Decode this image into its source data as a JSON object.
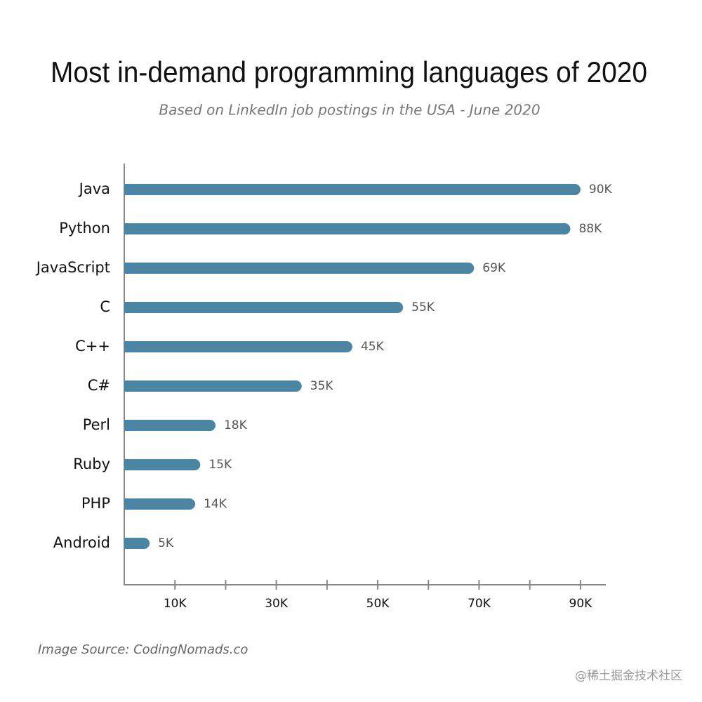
{
  "chart_data": {
    "type": "bar",
    "orientation": "horizontal",
    "title": "Most in-demand programming languages of 2020",
    "subtitle": "Based on LinkedIn job postings in the USA - June 2020",
    "categories": [
      "Java",
      "Python",
      "JavaScript",
      "C",
      "C++",
      "C#",
      "Perl",
      "Ruby",
      "PHP",
      "Android"
    ],
    "values": [
      90,
      88,
      69,
      55,
      45,
      35,
      18,
      15,
      14,
      5
    ],
    "value_labels": [
      "90K",
      "88K",
      "69K",
      "55K",
      "45K",
      "35K",
      "18K",
      "15K",
      "14K",
      "5K"
    ],
    "color": "#4a86a3",
    "xlim": [
      0,
      95
    ],
    "xticks": [
      {
        "value": 10,
        "label": "10K"
      },
      {
        "value": 30,
        "label": "30K"
      },
      {
        "value": 50,
        "label": "50K"
      },
      {
        "value": 70,
        "label": "70K"
      },
      {
        "value": 90,
        "label": "90K"
      }
    ],
    "minor_xticks": [
      20,
      40,
      60,
      80
    ],
    "source": "Image Source: CodingNomads.co"
  },
  "watermark": "@稀土掘金技术社区"
}
